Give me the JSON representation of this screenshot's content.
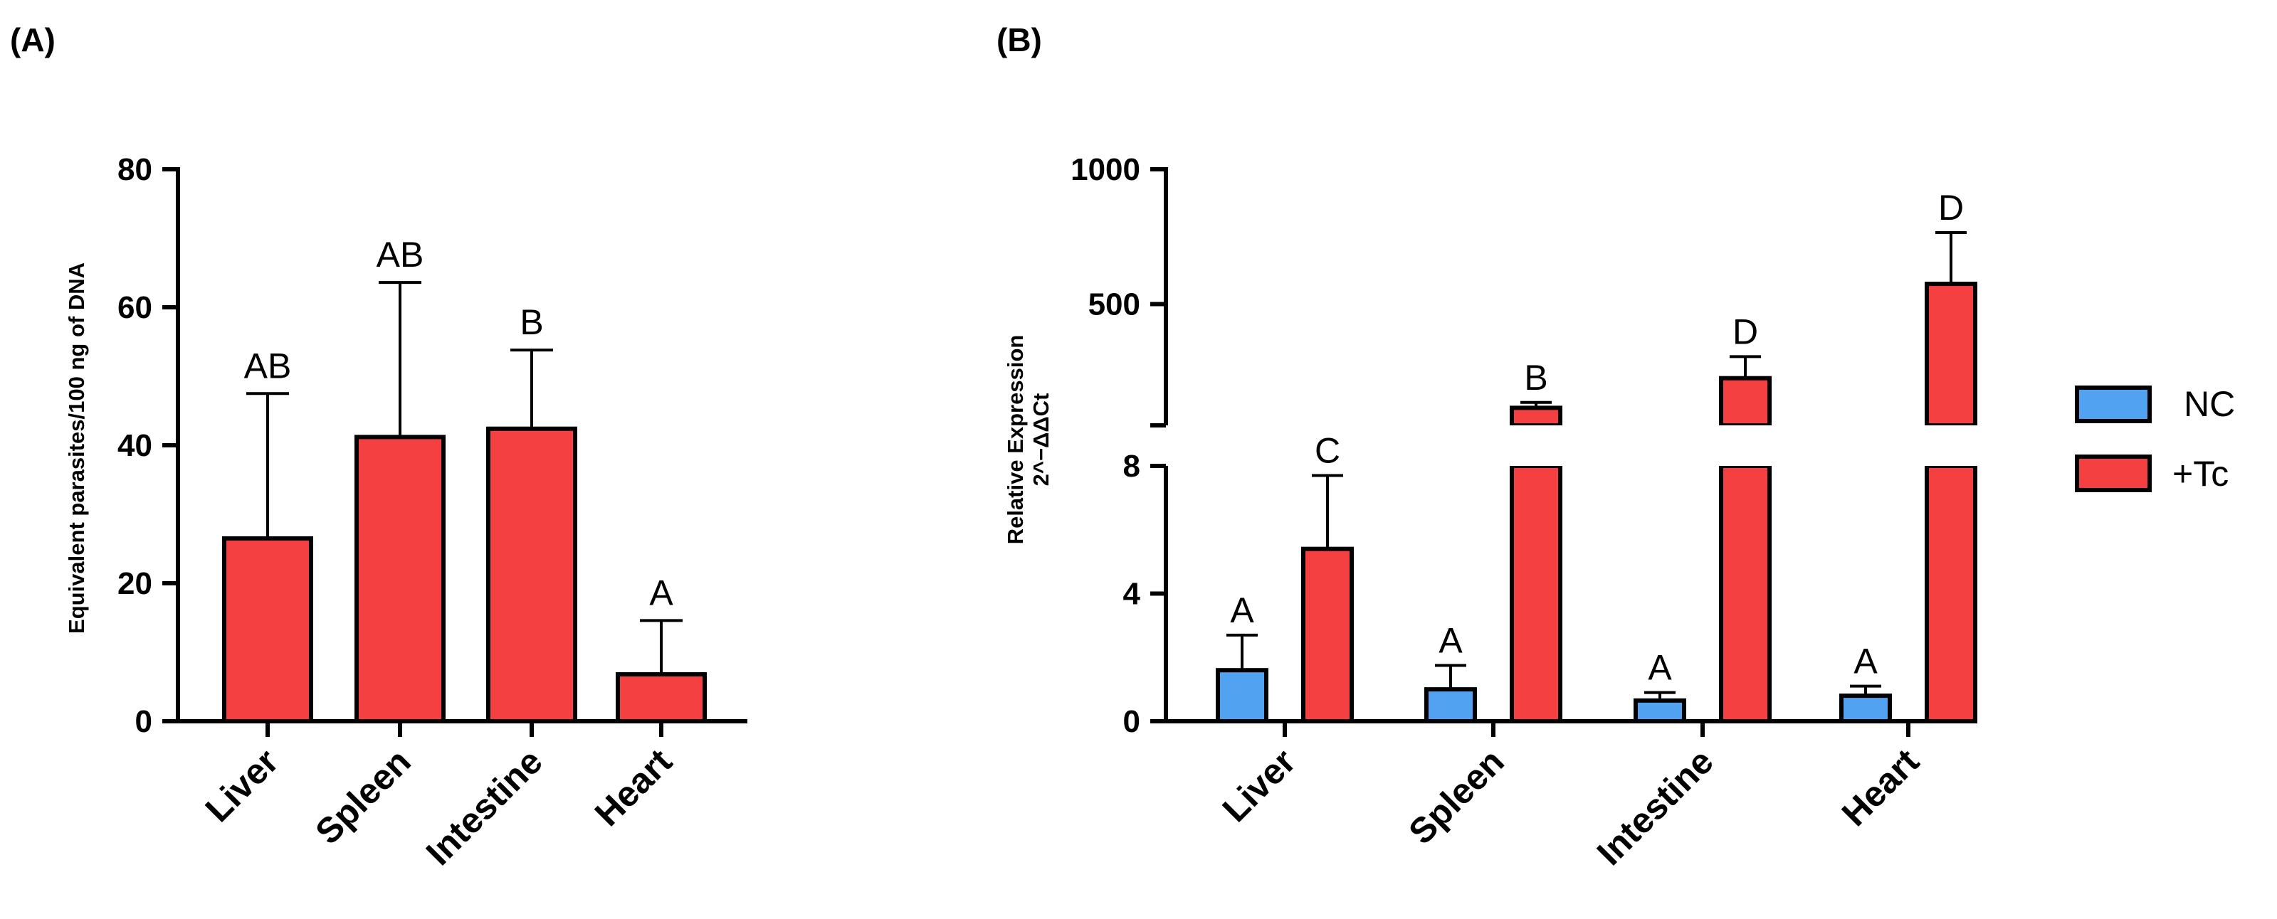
{
  "chart_data": [
    {
      "panel": "(A)",
      "type": "bar",
      "ylabel": "Equivalent parasites/100 ng of DNA",
      "ylim": [
        0,
        80
      ],
      "yticks": [
        0,
        20,
        40,
        60,
        80
      ],
      "categories": [
        "Liver",
        "Spleen",
        "Intestine",
        "Heart"
      ],
      "values": [
        26.5,
        41.2,
        42.4,
        6.8
      ],
      "errors": [
        21.0,
        22.4,
        11.4,
        7.8
      ],
      "letters": [
        "AB",
        "AB",
        "B",
        "A"
      ],
      "color": "#f44040"
    },
    {
      "panel": "(B)",
      "type": "bar",
      "ylabel_line1": "Relative Expression",
      "ylabel_line2": "2^−ΔΔCt",
      "y_axis_break": true,
      "lower_segment": {
        "ylim": [
          0,
          8
        ],
        "yticks": [
          0,
          4,
          8
        ]
      },
      "upper_segment": {
        "ylim": [
          50,
          1000
        ],
        "yticks": [
          500,
          1000
        ]
      },
      "categories": [
        "Liver",
        "Spleen",
        "Intestine",
        "Heart"
      ],
      "series": [
        {
          "name": "NC",
          "color": "#52a2f2",
          "values": [
            1.6,
            1.0,
            0.65,
            0.8
          ],
          "errors": [
            1.1,
            0.75,
            0.25,
            0.3
          ],
          "letters": [
            "A",
            "A",
            "A",
            "A"
          ]
        },
        {
          "name": "+Tc",
          "color": "#f44040",
          "values": [
            5.4,
            115,
            225,
            575
          ],
          "errors": [
            2.3,
            20,
            80,
            190
          ],
          "letters": [
            "C",
            "B",
            "D",
            "D"
          ]
        }
      ],
      "legend": [
        "NC",
        "+Tc"
      ]
    }
  ]
}
